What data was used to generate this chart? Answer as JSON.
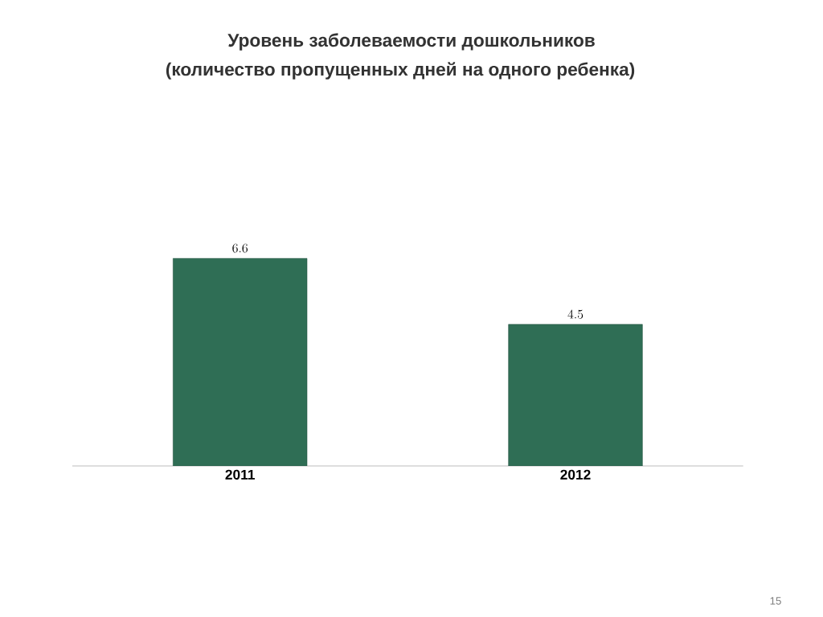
{
  "chart_data": {
    "type": "bar",
    "title": "Уровень заболеваемости дошкольников",
    "subtitle": "(количество пропущенных дней на одного ребенка)",
    "categories": [
      "2011",
      "2012"
    ],
    "values": [
      6.6,
      4.5
    ],
    "color": "#2f6e55",
    "data_labels": true,
    "annotations": [
      "15"
    ]
  }
}
